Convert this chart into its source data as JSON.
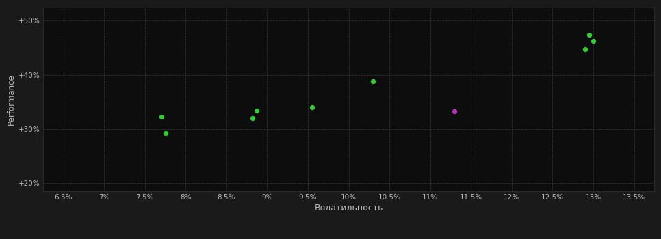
{
  "background_color": "#1a1a1a",
  "plot_bg_color": "#0d0d0d",
  "grid_color": "#333333",
  "text_color": "#bbbbbb",
  "xlabel": "Волатильность",
  "ylabel": "Performance",
  "xlim": [
    0.0625,
    0.1375
  ],
  "ylim": [
    0.185,
    0.525
  ],
  "xticks": [
    0.065,
    0.07,
    0.075,
    0.08,
    0.085,
    0.09,
    0.095,
    0.1,
    0.105,
    0.11,
    0.115,
    0.12,
    0.125,
    0.13,
    0.135
  ],
  "xtick_labels": [
    "6.5%",
    "7%",
    "7.5%",
    "8%",
    "8.5%",
    "9%",
    "9.5%",
    "10%",
    "10.5%",
    "11%",
    "11.5%",
    "12%",
    "12.5%",
    "13%",
    "13.5%"
  ],
  "yticks": [
    0.2,
    0.3,
    0.4,
    0.5
  ],
  "ytick_labels": [
    "+20%",
    "+30%",
    "+40%",
    "+50%"
  ],
  "green_points": [
    [
      0.1295,
      0.474
    ],
    [
      0.13,
      0.462
    ],
    [
      0.129,
      0.447
    ],
    [
      0.103,
      0.388
    ],
    [
      0.0955,
      0.34
    ],
    [
      0.0887,
      0.334
    ],
    [
      0.0882,
      0.32
    ],
    [
      0.077,
      0.323
    ],
    [
      0.0775,
      0.292
    ]
  ],
  "magenta_points": [
    [
      0.113,
      0.332
    ]
  ],
  "green_color": "#33cc33",
  "magenta_color": "#bb33bb",
  "marker_size": 18,
  "marker_style": "o"
}
